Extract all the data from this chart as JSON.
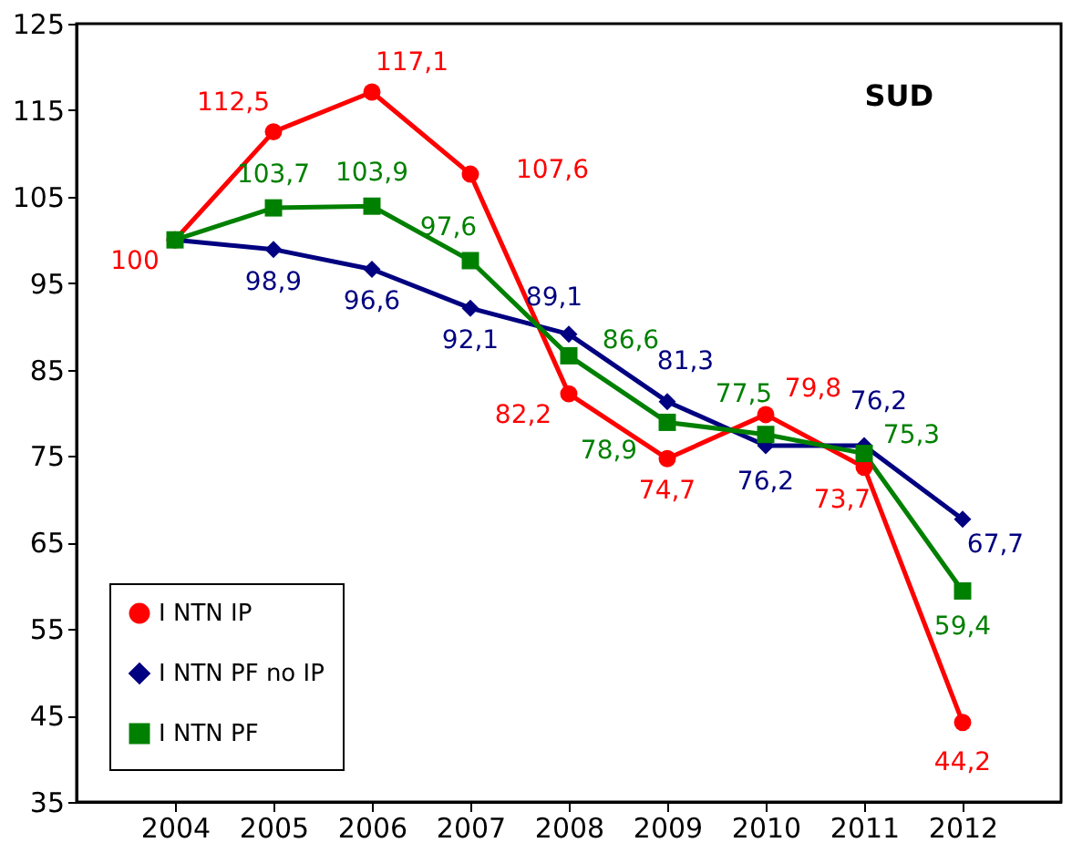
{
  "chart_data": {
    "type": "line",
    "title": "SUD",
    "categories": [
      "2004",
      "2005",
      "2006",
      "2007",
      "2008",
      "2009",
      "2010",
      "2011",
      "2012"
    ],
    "series": [
      {
        "name": "I NTN IP",
        "color": "#ff0000",
        "marker": "circle",
        "values": [
          100,
          112.5,
          117.1,
          107.6,
          82.2,
          74.7,
          79.8,
          73.7,
          44.2
        ],
        "value_labels": [
          "100",
          "112,5",
          "117,1",
          "107,6",
          "82,2",
          "74,7",
          "79,8",
          "73,7",
          "44,2"
        ]
      },
      {
        "name": "I NTN PF no IP",
        "color": "#000080",
        "marker": "diamond",
        "values": [
          100,
          98.9,
          96.6,
          92.1,
          89.1,
          81.3,
          76.2,
          76.2,
          67.7
        ],
        "value_labels": [
          null,
          "98,9",
          "96,6",
          "92,1",
          "89,1",
          "81,3",
          "76,2",
          "76,2",
          "67,7"
        ]
      },
      {
        "name": "I NTN PF",
        "color": "#008000",
        "marker": "square",
        "values": [
          100,
          103.7,
          103.9,
          97.6,
          86.6,
          78.9,
          77.5,
          75.3,
          59.4
        ],
        "value_labels": [
          null,
          "103,7",
          "103,9",
          "97,6",
          "86,6",
          "78,9",
          "77,5",
          "75,3",
          "59,4"
        ]
      }
    ],
    "ylim": [
      35,
      125
    ],
    "yticks": [
      35,
      45,
      55,
      65,
      75,
      85,
      95,
      105,
      115,
      125
    ],
    "grid": false,
    "legend": "bottom left",
    "line_style": "solid"
  }
}
